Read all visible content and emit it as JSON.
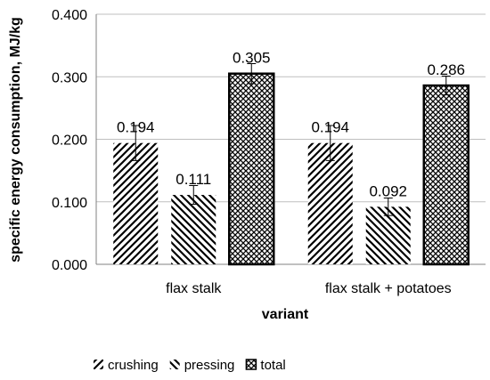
{
  "chart_data": {
    "type": "bar",
    "categories": [
      "flax stalk",
      "flax stalk + potatoes"
    ],
    "series": [
      {
        "name": "crushing",
        "values": [
          0.194,
          0.194
        ],
        "errors": [
          0.028,
          0.028
        ],
        "pattern": "diag-right",
        "labels": [
          "0.194",
          "0.194"
        ]
      },
      {
        "name": "pressing",
        "values": [
          0.111,
          0.092
        ],
        "errors": [
          0.015,
          0.014
        ],
        "pattern": "diag-left",
        "labels": [
          "0.111",
          "0.092"
        ]
      },
      {
        "name": "total",
        "values": [
          0.305,
          0.286
        ],
        "errors": [
          0.016,
          0.015
        ],
        "pattern": "crosshatch",
        "labels": [
          "0.305",
          "0.286"
        ]
      }
    ],
    "yticks": [
      "0.000",
      "0.100",
      "0.200",
      "0.300",
      "0.400"
    ],
    "ylim": [
      0,
      0.4
    ],
    "xlabel": "variant",
    "ylabel": "specific energy consumption, MJ/kg",
    "grid": true,
    "legend_position": "bottom",
    "colors": {
      "bar_fill": "#ffffff",
      "pattern": "#000000",
      "grid": "#bfbfbf",
      "axis": "#808080"
    }
  }
}
